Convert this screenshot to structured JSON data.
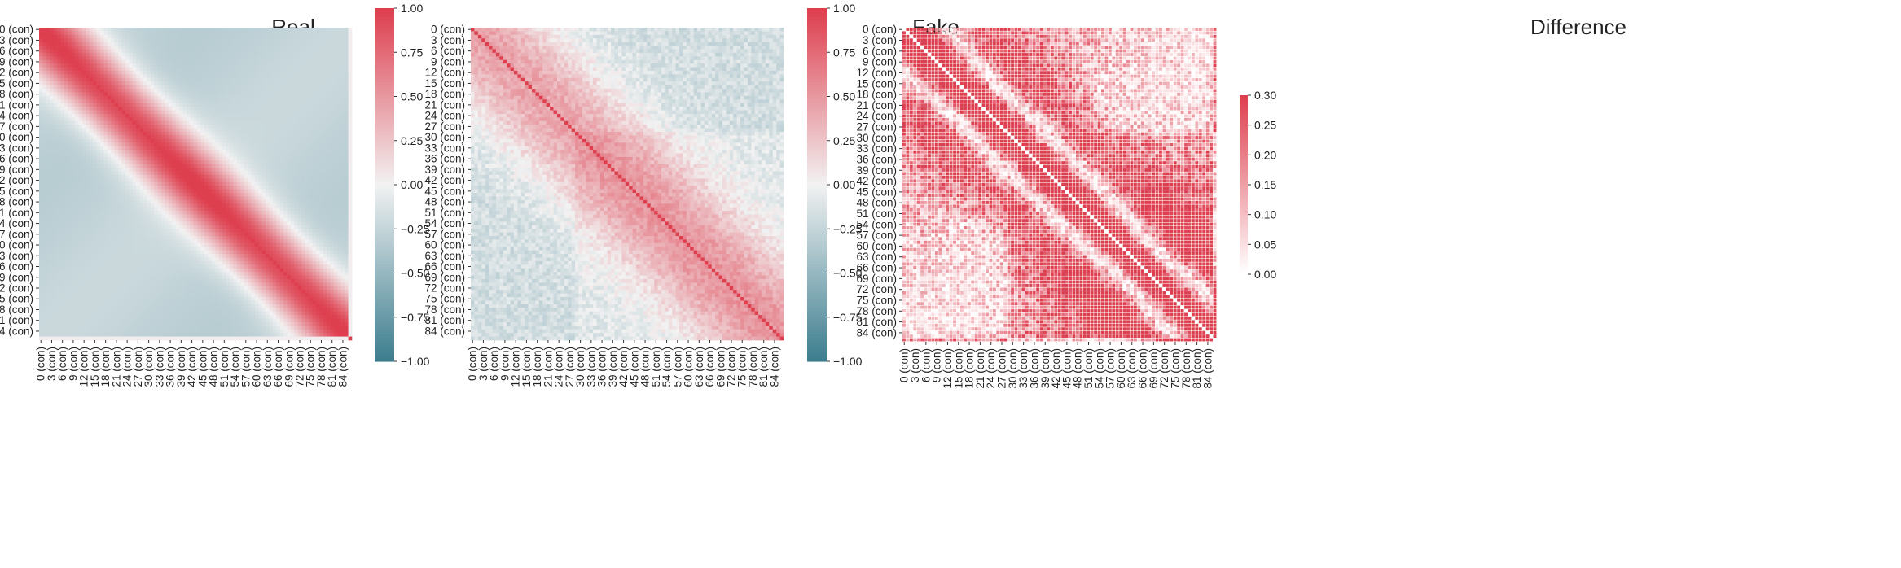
{
  "palette": {
    "negative": "#3d7e8f",
    "neutral": "#f2f2f2",
    "positive": "#de3f4f",
    "background": "#ffffff"
  },
  "chart_data": [
    {
      "type": "heatmap",
      "title": "Real",
      "variables_step": 3,
      "tick_labels": [
        "0 (con)",
        "3 (con)",
        "6 (con)",
        "9 (con)",
        "12 (con)",
        "15 (con)",
        "18 (con)",
        "21 (con)",
        "24 (con)",
        "27 (con)",
        "30 (con)",
        "33 (con)",
        "36 (con)",
        "39 (con)",
        "42 (con)",
        "45 (con)",
        "48 (con)",
        "51 (con)",
        "54 (con)",
        "57 (con)",
        "60 (con)",
        "63 (con)",
        "66 (con)",
        "69 (con)",
        "72 (con)",
        "75 (con)",
        "78 (con)",
        "81 (con)",
        "84 (con)"
      ],
      "n_variables": 87,
      "colorbar": {
        "min": -1.0,
        "max": 1.0,
        "ticks": [
          -1.0,
          -0.75,
          -0.5,
          -0.25,
          0.0,
          0.25,
          0.5,
          0.75,
          1.0
        ],
        "tick_labels": [
          "−1.00",
          "−0.75",
          "−0.50",
          "−0.25",
          "0.00",
          "0.25",
          "0.50",
          "0.75",
          "1.00"
        ],
        "colormap": "diverging teal–white–red"
      },
      "pattern": "smooth correlation: 1.0 on diagonal, falls off with |i−j| over ~15 lags, about −0.25 far off-diagonal; last row/column near 0",
      "gridlines": false
    },
    {
      "type": "heatmap",
      "title": "Fake",
      "variables_step": 3,
      "tick_labels": [
        "0 (con)",
        "3 (con)",
        "6 (con)",
        "9 (con)",
        "12 (con)",
        "15 (con)",
        "18 (con)",
        "21 (con)",
        "24 (con)",
        "27 (con)",
        "30 (con)",
        "33 (con)",
        "36 (con)",
        "39 (con)",
        "42 (con)",
        "45 (con)",
        "48 (con)",
        "51 (con)",
        "54 (con)",
        "57 (con)",
        "60 (con)",
        "63 (con)",
        "66 (con)",
        "69 (con)",
        "72 (con)",
        "75 (con)",
        "78 (con)",
        "81 (con)",
        "84 (con)"
      ],
      "n_variables": 87,
      "colorbar": {
        "min": -1.0,
        "max": 1.0,
        "ticks": [
          -1.0,
          -0.75,
          -0.5,
          -0.25,
          0.0,
          0.25,
          0.5,
          0.75,
          1.0
        ],
        "tick_labels": [
          "−1.00",
          "−0.75",
          "−0.50",
          "−0.25",
          "0.00",
          "0.25",
          "0.50",
          "0.75",
          "1.00"
        ],
        "colormap": "diverging teal–white–red"
      },
      "pattern": "noisy version of Real: diagonal 1.0, off-diagonal band ~0.3–0.6, far off-diagonal ~ −0.15 to −0.35 with noise",
      "gridlines": false
    },
    {
      "type": "heatmap",
      "title": "Difference",
      "variables_step": 3,
      "tick_labels": [
        "0 (con)",
        "3 (con)",
        "6 (con)",
        "9 (con)",
        "12 (con)",
        "15 (con)",
        "18 (con)",
        "21 (con)",
        "24 (con)",
        "27 (con)",
        "30 (con)",
        "33 (con)",
        "36 (con)",
        "39 (con)",
        "42 (con)",
        "45 (con)",
        "48 (con)",
        "51 (con)",
        "54 (con)",
        "57 (con)",
        "60 (con)",
        "63 (con)",
        "66 (con)",
        "69 (con)",
        "72 (con)",
        "75 (con)",
        "78 (con)",
        "81 (con)",
        "84 (con)"
      ],
      "n_variables": 87,
      "colorbar": {
        "min": 0.0,
        "max": 0.3,
        "ticks": [
          0.0,
          0.05,
          0.1,
          0.15,
          0.2,
          0.25,
          0.3
        ],
        "tick_labels": [
          "0.00",
          "0.05",
          "0.10",
          "0.15",
          "0.20",
          "0.25",
          "0.30"
        ],
        "colormap": "white–red"
      },
      "pattern": "absolute difference |Real − Fake|: 0 on diagonal, large (~0.25–0.3) bands beside the diagonal and in middle off-diagonal blocks, small elsewhere",
      "gridlines": true
    }
  ]
}
